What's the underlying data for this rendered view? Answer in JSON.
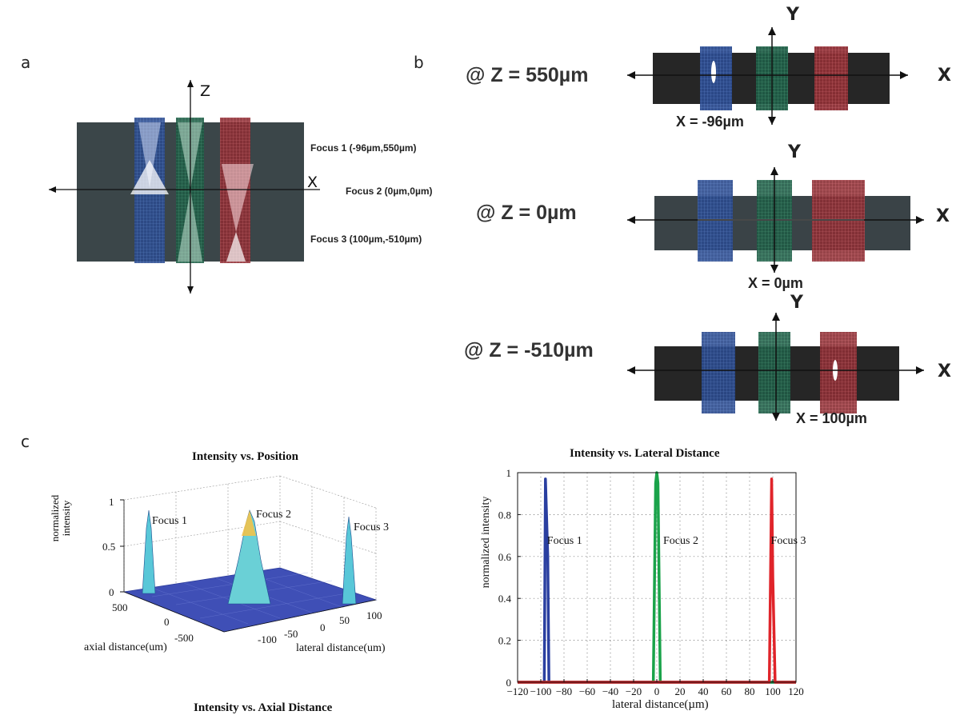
{
  "panels": {
    "a": "a",
    "b": "b",
    "c": "c"
  },
  "panel_a": {
    "axis_z": "Z",
    "axis_x": "X",
    "focus": [
      "Focus 1 (-96µm,550µm)",
      "Focus 2 (0µm,0µm)",
      "Focus 3 (100µm,-510µm)"
    ]
  },
  "panel_b": {
    "rows": [
      {
        "z_label": "@ Z = 550µm",
        "x_caption": "X = -96µm",
        "axis_x": "X",
        "axis_y": "Y"
      },
      {
        "z_label": "@ Z = 0µm",
        "x_caption": "X = 0µm",
        "axis_x": "X",
        "axis_y": "Y"
      },
      {
        "z_label": "@ Z = -510µm",
        "x_caption": "X = 100µm",
        "axis_x": "X",
        "axis_y": "Y"
      }
    ]
  },
  "colors": {
    "blue": "#2a3fa0",
    "green": "#1aa34a",
    "red": "#e0242a",
    "panel_dark": "#2a2a2a",
    "panel_slate": "#3a4347"
  },
  "chart_data": [
    {
      "type": "surface",
      "title": "Intensity vs. Position",
      "zlabel": "normalized intensity",
      "xlabel": "lateral distance(um)",
      "ylabel": "axial distance(um)",
      "z_ticks": [
        "0",
        "0.5",
        "1"
      ],
      "x_ticks": [
        "-100",
        "-50",
        "0",
        "50",
        "100"
      ],
      "y_ticks": [
        "500",
        "0",
        "-500"
      ],
      "annotations": [
        "Focus 1",
        "Focus 2",
        "Focus 3"
      ]
    },
    {
      "type": "line",
      "title": "Intensity vs. Lateral Distance",
      "xlabel": "lateral distance(µm)",
      "ylabel": "normalized intensity",
      "xlim": [
        -120,
        120
      ],
      "ylim": [
        0,
        1
      ],
      "x_ticks": [
        "-120",
        "-100",
        "-80",
        "-60",
        "-40",
        "-20",
        "0",
        "20",
        "40",
        "60",
        "80",
        "100",
        "120"
      ],
      "y_ticks": [
        "0",
        "0.2",
        "0.4",
        "0.6",
        "0.8",
        "1"
      ],
      "grid": true,
      "series": [
        {
          "name": "Focus 1",
          "color": "#2a3fa0",
          "x": [
            -120,
            -97,
            -96,
            -94,
            -93,
            120
          ],
          "y": [
            0,
            0,
            0.97,
            0.6,
            0,
            0
          ]
        },
        {
          "name": "Focus 2",
          "color": "#1aa34a",
          "x": [
            -120,
            -3,
            -1,
            0,
            1,
            3,
            120
          ],
          "y": [
            0,
            0,
            0.95,
            1.0,
            0.95,
            0,
            0
          ]
        },
        {
          "name": "Focus 3",
          "color": "#e0242a",
          "x": [
            -120,
            97,
            99,
            100,
            102,
            120
          ],
          "y": [
            0,
            0,
            0.97,
            0.5,
            0,
            0
          ]
        }
      ]
    },
    {
      "type": "line",
      "title": "Intensity vs. Axial Distance"
    }
  ]
}
